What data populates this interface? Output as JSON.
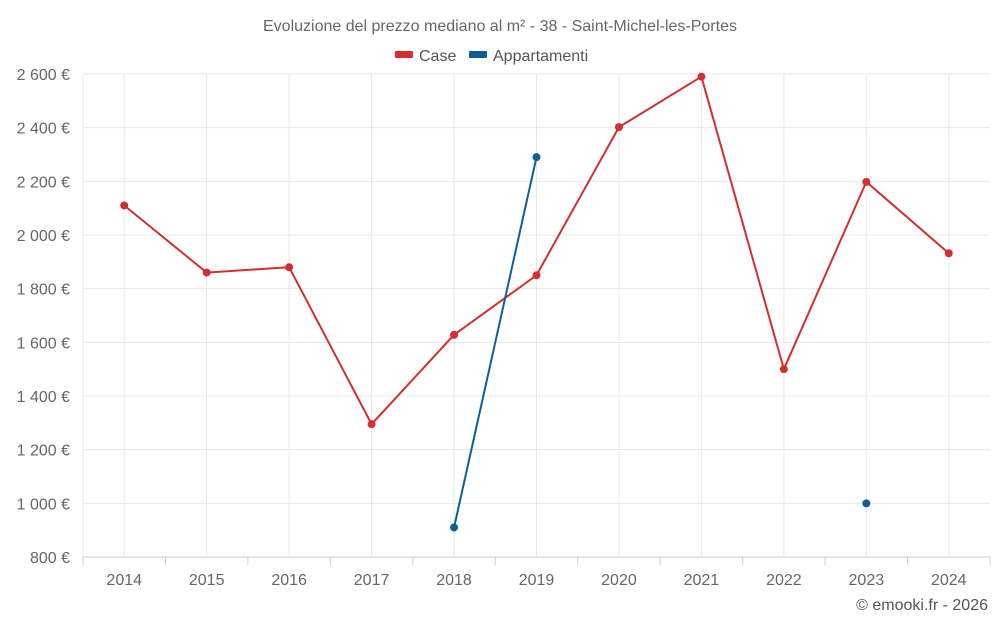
{
  "chart_data": {
    "type": "line",
    "title": "Evoluzione del prezzo mediano al m² - 38 - Saint-Michel-les-Portes",
    "x": [
      2014,
      2015,
      2016,
      2017,
      2018,
      2019,
      2020,
      2021,
      2022,
      2023,
      2024
    ],
    "x_tick_labels": [
      "2014",
      "2015",
      "2016",
      "2017",
      "2018",
      "2019",
      "2020",
      "2021",
      "2022",
      "2023",
      "2024"
    ],
    "ylim": [
      800,
      2600
    ],
    "y_ticks": [
      800,
      1000,
      1200,
      1400,
      1600,
      1800,
      2000,
      2200,
      2400,
      2600
    ],
    "y_tick_labels": [
      "800 €",
      "1 000 €",
      "1 200 €",
      "1 400 €",
      "1 600 €",
      "1 800 €",
      "2 000 €",
      "2 200 €",
      "2 400 €",
      "2 600 €"
    ],
    "grid": true,
    "legend_position": "top-center",
    "series": [
      {
        "name": "Case",
        "color": "#d32f2f",
        "values": [
          2110,
          1860,
          1880,
          1295,
          1628,
          1850,
          2402,
          2590,
          1500,
          2198,
          1932
        ]
      },
      {
        "name": "Appartamenti",
        "color": "#0f5f96",
        "values": [
          null,
          null,
          null,
          null,
          910,
          2290,
          null,
          null,
          null,
          1000,
          null
        ]
      }
    ]
  },
  "credit": "© emooki.fr - 2026"
}
